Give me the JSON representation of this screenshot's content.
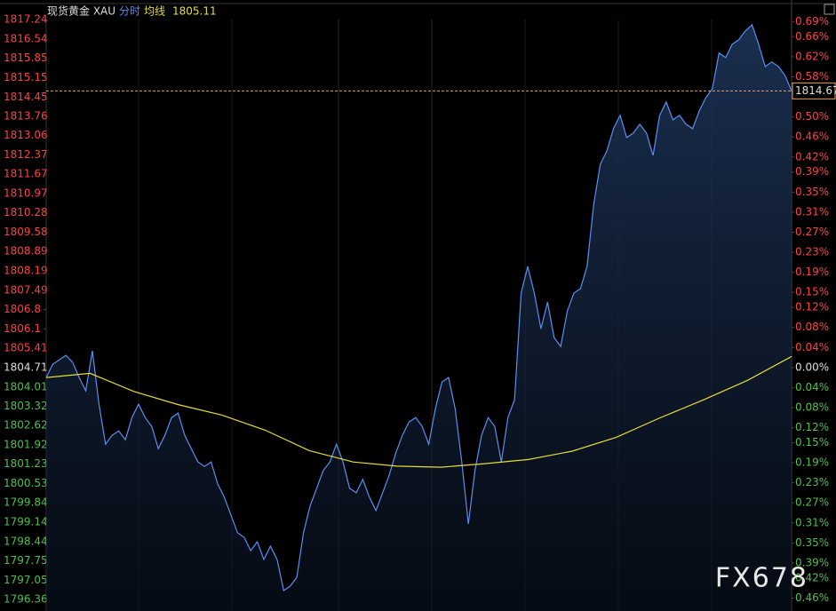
{
  "chart_data": {
    "type": "line",
    "title": "现货黄金 XAU",
    "ylim": [
      1796.36,
      1817.24
    ],
    "yticks": [
      1817.24,
      1816.54,
      1815.85,
      1815.15,
      1814.45,
      1813.76,
      1813.06,
      1812.37,
      1811.67,
      1810.97,
      1810.28,
      1809.58,
      1808.89,
      1808.19,
      1807.49,
      1806.8,
      1806.1,
      1805.41,
      1804.71,
      1804.01,
      1803.32,
      1802.62,
      1801.92,
      1801.23,
      1800.53,
      1799.84,
      1799.14,
      1798.44,
      1797.75,
      1797.05,
      1796.36
    ],
    "y2lim": [
      -0.4627,
      0.6943
    ],
    "y2ticks": [
      {
        "value": 0.69,
        "label": "0.69%"
      },
      {
        "value": 0.66,
        "label": "0.66%"
      },
      {
        "value": 0.62,
        "label": "0.62%"
      },
      {
        "value": 0.58,
        "label": "0.58%"
      },
      {
        "value": 0.5,
        "label": "0.50%"
      },
      {
        "value": 0.46,
        "label": "0.46%"
      },
      {
        "value": 0.42,
        "label": "0.42%"
      },
      {
        "value": 0.39,
        "label": "0.39%"
      },
      {
        "value": 0.35,
        "label": "0.35%"
      },
      {
        "value": 0.31,
        "label": "0.31%"
      },
      {
        "value": 0.27,
        "label": "0.27%"
      },
      {
        "value": 0.23,
        "label": "0.23%"
      },
      {
        "value": 0.19,
        "label": "0.19%"
      },
      {
        "value": 0.15,
        "label": "0.15%"
      },
      {
        "value": 0.12,
        "label": "0.12%"
      },
      {
        "value": 0.08,
        "label": "0.08%"
      },
      {
        "value": 0.04,
        "label": "0.04%"
      },
      {
        "value": 0,
        "label": "0.00%"
      },
      {
        "value": -0.04,
        "label": "0.04%"
      },
      {
        "value": -0.08,
        "label": "0.08%"
      },
      {
        "value": -0.12,
        "label": "0.12%"
      },
      {
        "value": -0.15,
        "label": "0.15%"
      },
      {
        "value": -0.19,
        "label": "0.19%"
      },
      {
        "value": -0.23,
        "label": "0.23%"
      },
      {
        "value": -0.27,
        "label": "0.27%"
      },
      {
        "value": -0.31,
        "label": "0.31%"
      },
      {
        "value": -0.35,
        "label": "0.35%"
      },
      {
        "value": -0.39,
        "label": "0.39%"
      },
      {
        "value": -0.42,
        "label": "0.42%"
      },
      {
        "value": -0.46,
        "label": "0.46%"
      }
    ],
    "series": [
      {
        "name": "分时",
        "color": "#5b8ff0",
        "values": [
          1804.35,
          1804.83,
          1804.99,
          1805.15,
          1804.9,
          1804.35,
          1803.87,
          1805.31,
          1803.39,
          1801.95,
          1802.27,
          1802.43,
          1802.11,
          1802.91,
          1803.39,
          1802.91,
          1802.59,
          1801.79,
          1802.27,
          1802.91,
          1803.07,
          1802.27,
          1801.79,
          1801.31,
          1801.15,
          1801.31,
          1800.52,
          1800.04,
          1799.4,
          1798.76,
          1798.6,
          1798.12,
          1798.44,
          1797.8,
          1798.28,
          1797.8,
          1796.68,
          1796.84,
          1797.16,
          1798.76,
          1799.72,
          1800.36,
          1801.0,
          1801.31,
          1801.95,
          1801.31,
          1800.36,
          1800.2,
          1800.68,
          1800.04,
          1799.56,
          1800.2,
          1800.84,
          1801.63,
          1802.27,
          1802.75,
          1802.91,
          1802.59,
          1801.95,
          1803.23,
          1804.19,
          1804.35,
          1803.23,
          1801.31,
          1799.08,
          1801.0,
          1802.27,
          1802.91,
          1802.59,
          1801.31,
          1802.91,
          1803.55,
          1807.39,
          1808.35,
          1807.39,
          1806.11,
          1807.07,
          1805.79,
          1805.47,
          1806.75,
          1807.39,
          1807.55,
          1808.35,
          1810.59,
          1812.03,
          1812.51,
          1813.31,
          1813.79,
          1812.99,
          1813.15,
          1813.47,
          1813.15,
          1812.35,
          1813.79,
          1814.27,
          1813.63,
          1813.79,
          1813.47,
          1813.31,
          1813.95,
          1814.43,
          1814.75,
          1816.03,
          1815.87,
          1816.35,
          1816.51,
          1816.83,
          1817.05,
          1816.35,
          1815.55,
          1815.71,
          1815.55,
          1815.23,
          1814.67
        ]
      },
      {
        "name": "均线",
        "color": "#e6dc3c",
        "latest": 1805.11,
        "values": [
          1804.35,
          1804.5,
          1803.85,
          1803.38,
          1803.0,
          1802.45,
          1801.72,
          1801.31,
          1801.16,
          1801.12,
          1801.25,
          1801.4,
          1801.7,
          1802.2,
          1802.9,
          1803.55,
          1804.25,
          1805.11
        ]
      }
    ],
    "last_price": 1814.67,
    "watermark": "FX678"
  }
}
